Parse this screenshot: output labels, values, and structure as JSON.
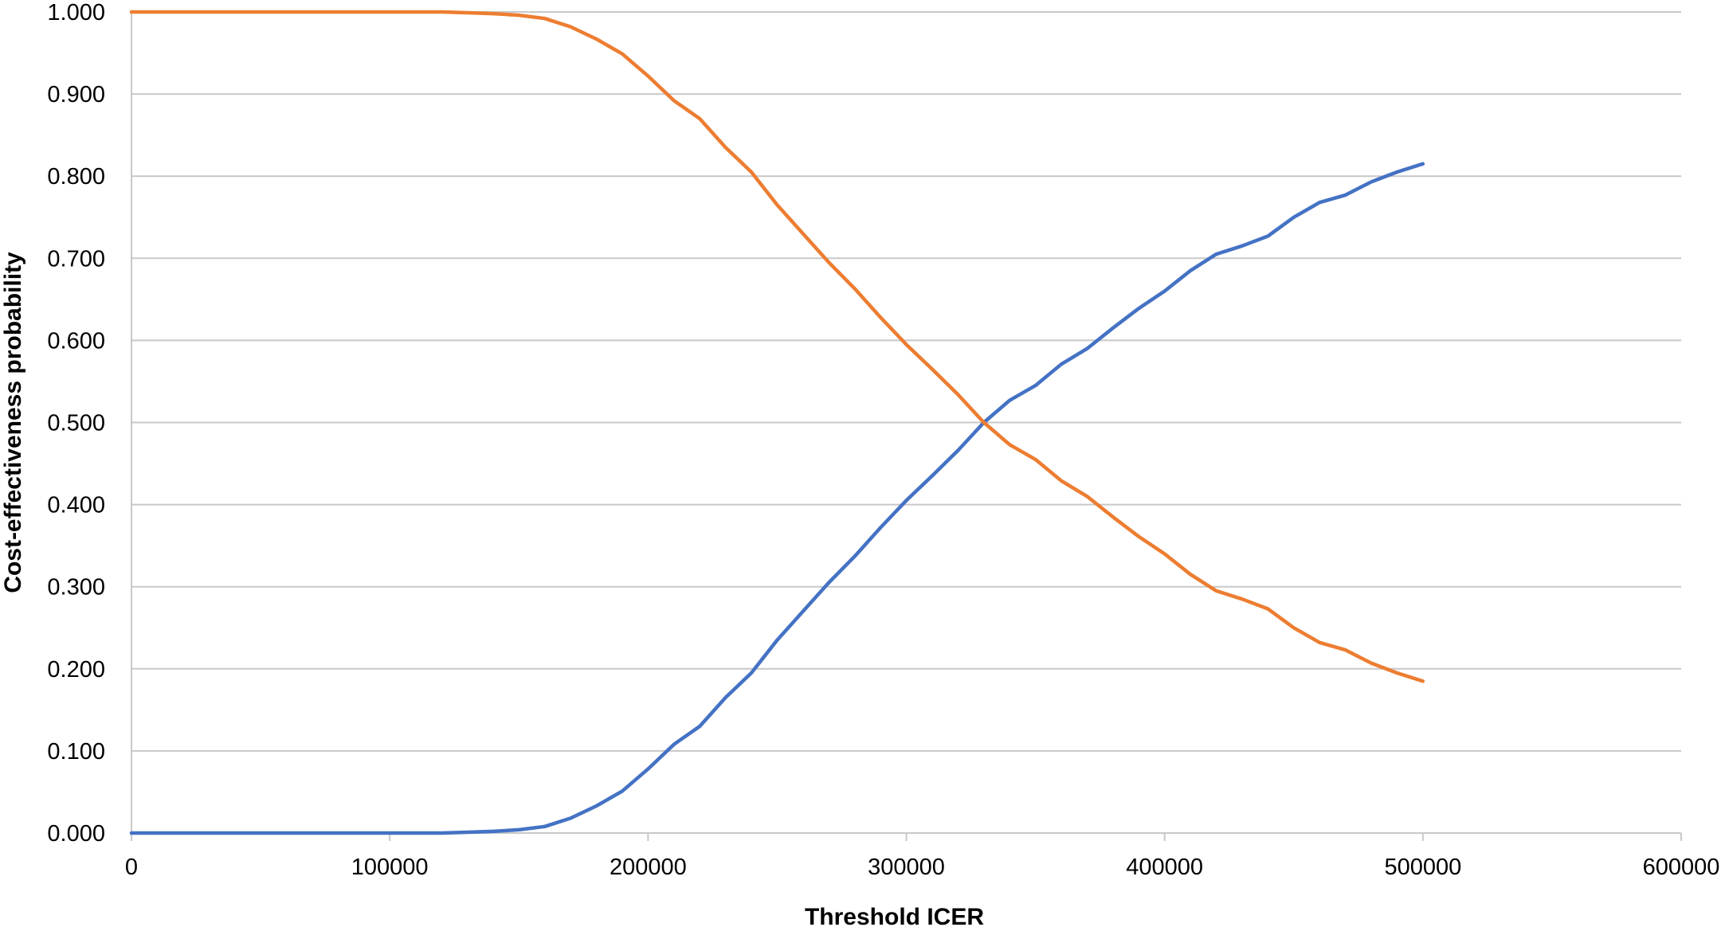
{
  "chart_data": {
    "type": "line",
    "title": "",
    "xlabel": "Threshold ICER",
    "ylabel": "Cost-effectiveness probability",
    "xlim": [
      0,
      600000
    ],
    "ylim": [
      0,
      1
    ],
    "x_ticks": [
      "0",
      "100000",
      "200000",
      "300000",
      "400000",
      "500000",
      "600000"
    ],
    "y_ticks": [
      "0.000",
      "0.100",
      "0.200",
      "0.300",
      "0.400",
      "0.500",
      "0.600",
      "0.700",
      "0.800",
      "0.900",
      "1.000"
    ],
    "grid": "horizontal",
    "legend": "none",
    "x": [
      0,
      10000,
      20000,
      30000,
      40000,
      50000,
      60000,
      70000,
      80000,
      90000,
      100000,
      110000,
      120000,
      130000,
      140000,
      150000,
      160000,
      170000,
      180000,
      190000,
      200000,
      210000,
      220000,
      230000,
      240000,
      250000,
      260000,
      270000,
      280000,
      290000,
      300000,
      310000,
      320000,
      330000,
      340000,
      350000,
      360000,
      370000,
      380000,
      390000,
      400000,
      410000,
      420000,
      430000,
      440000,
      450000,
      460000,
      470000,
      480000,
      490000,
      500000
    ],
    "series": [
      {
        "color": "#4472C4",
        "values": [
          0.0,
          0.0,
          0.0,
          0.0,
          0.0,
          0.0,
          0.0,
          0.0,
          0.0,
          0.0,
          0.0,
          0.0,
          0.0,
          0.001,
          0.002,
          0.004,
          0.008,
          0.018,
          0.033,
          0.051,
          0.078,
          0.108,
          0.13,
          0.165,
          0.195,
          0.235,
          0.27,
          0.305,
          0.337,
          0.372,
          0.405,
          0.435,
          0.466,
          0.5,
          0.527,
          0.545,
          0.571,
          0.59,
          0.615,
          0.639,
          0.66,
          0.685,
          0.705,
          0.715,
          0.727,
          0.75,
          0.768,
          0.777,
          0.793,
          0.805,
          0.815
        ]
      },
      {
        "color": "#ED7D31",
        "values": [
          1.0,
          1.0,
          1.0,
          1.0,
          1.0,
          1.0,
          1.0,
          1.0,
          1.0,
          1.0,
          1.0,
          1.0,
          1.0,
          0.999,
          0.998,
          0.996,
          0.992,
          0.982,
          0.967,
          0.949,
          0.922,
          0.892,
          0.87,
          0.835,
          0.805,
          0.765,
          0.73,
          0.695,
          0.663,
          0.628,
          0.595,
          0.565,
          0.534,
          0.5,
          0.473,
          0.455,
          0.429,
          0.41,
          0.385,
          0.361,
          0.34,
          0.315,
          0.295,
          0.285,
          0.273,
          0.25,
          0.232,
          0.223,
          0.207,
          0.195,
          0.185
        ]
      }
    ]
  }
}
